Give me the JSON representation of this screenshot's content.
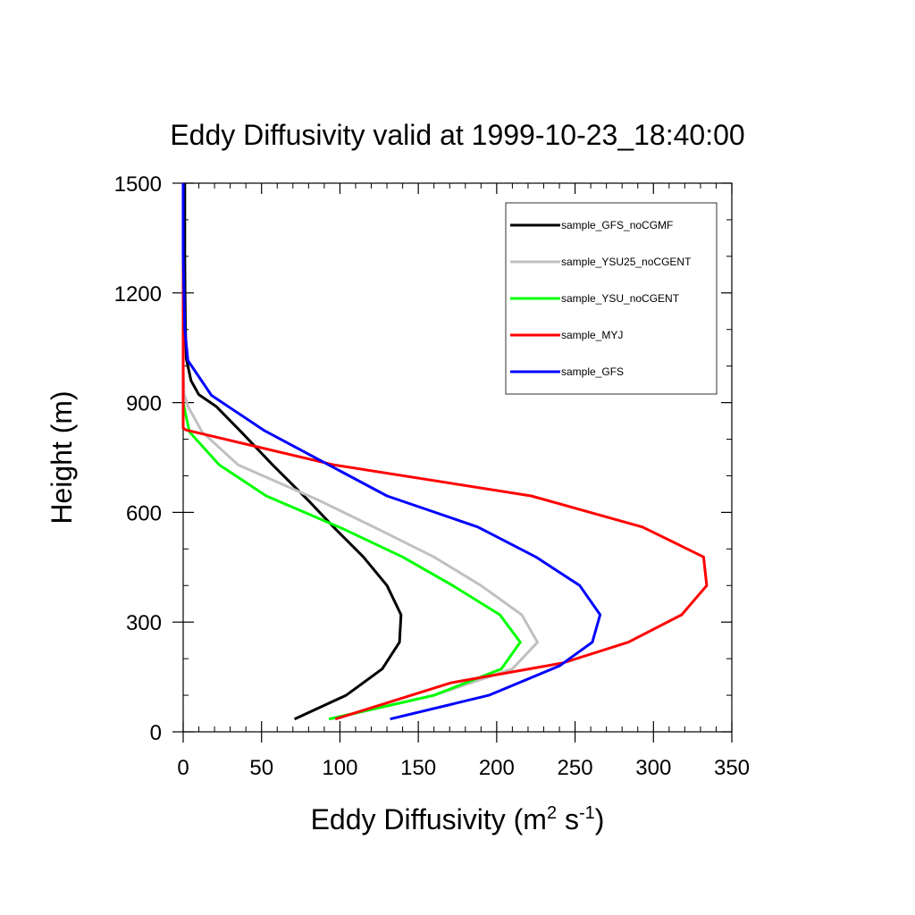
{
  "chart_data": {
    "type": "line",
    "title": "Eddy Diffusivity valid at 1999-10-23_18:40:00",
    "xlabel": "Eddy Diffusivity",
    "xlabel_unit_base": "m",
    "xlabel_unit_exp1": "2",
    "xlabel_unit_mid": "s",
    "xlabel_unit_exp2": "-1",
    "ylabel": "Height (m)",
    "xlim": [
      0,
      350
    ],
    "ylim": [
      0,
      1500
    ],
    "xticks": [
      0,
      50,
      100,
      150,
      200,
      250,
      300,
      350
    ],
    "yticks": [
      0,
      300,
      600,
      900,
      1200,
      1500
    ],
    "x_minor_step": 10,
    "y_minor_step": 100,
    "grid": false,
    "legend_position": "top-right",
    "series": [
      {
        "name": "sample_GFS_noCGMF",
        "color": "#000000",
        "points": [
          [
            71,
            35
          ],
          [
            104,
            100
          ],
          [
            127,
            172
          ],
          [
            138,
            245
          ],
          [
            139,
            320
          ],
          [
            130,
            400
          ],
          [
            115,
            478
          ],
          [
            97,
            555
          ],
          [
            80,
            632
          ],
          [
            57,
            730
          ],
          [
            37,
            820
          ],
          [
            21,
            890
          ],
          [
            10,
            922
          ],
          [
            5,
            960
          ],
          [
            2,
            1020
          ],
          [
            1.5,
            1100
          ],
          [
            1.2,
            1200
          ],
          [
            1,
            1300
          ],
          [
            1,
            1500
          ]
        ]
      },
      {
        "name": "sample_YSU25_noCGENT",
        "color": "#c0c0c0",
        "points": [
          [
            94,
            35
          ],
          [
            160,
            100
          ],
          [
            210,
            172
          ],
          [
            226,
            245
          ],
          [
            216,
            320
          ],
          [
            190,
            400
          ],
          [
            160,
            478
          ],
          [
            124,
            555
          ],
          [
            87,
            632
          ],
          [
            35,
            730
          ],
          [
            12,
            820
          ],
          [
            3,
            890
          ],
          [
            0.5,
            925
          ],
          [
            0,
            1000
          ],
          [
            0,
            1100
          ],
          [
            0,
            1500
          ]
        ]
      },
      {
        "name": "sample_YSU_noCGENT",
        "color": "#00ff00",
        "points": [
          [
            93,
            35
          ],
          [
            160,
            100
          ],
          [
            203,
            172
          ],
          [
            215,
            245
          ],
          [
            202,
            320
          ],
          [
            172,
            400
          ],
          [
            140,
            478
          ],
          [
            102,
            555
          ],
          [
            53,
            645
          ],
          [
            23,
            730
          ],
          [
            4,
            820
          ],
          [
            0,
            900
          ],
          [
            0,
            1000
          ],
          [
            0,
            1100
          ],
          [
            0,
            1500
          ]
        ]
      },
      {
        "name": "sample_MYJ",
        "color": "#ff0000",
        "points": [
          [
            97,
            35
          ],
          [
            171,
            134
          ],
          [
            242,
            188
          ],
          [
            284,
            245
          ],
          [
            318,
            320
          ],
          [
            334,
            400
          ],
          [
            332,
            478
          ],
          [
            293,
            560
          ],
          [
            222,
            645
          ],
          [
            96,
            730
          ],
          [
            2,
            825
          ],
          [
            0,
            830
          ],
          [
            0,
            900
          ],
          [
            0,
            1000
          ],
          [
            0,
            1100
          ],
          [
            0,
            1500
          ]
        ]
      },
      {
        "name": "sample_GFS",
        "color": "#0000ff",
        "points": [
          [
            132,
            35
          ],
          [
            195,
            100
          ],
          [
            240,
            180
          ],
          [
            261,
            245
          ],
          [
            266,
            320
          ],
          [
            253,
            400
          ],
          [
            225,
            478
          ],
          [
            188,
            560
          ],
          [
            130,
            645
          ],
          [
            52,
            823
          ],
          [
            18,
            920
          ],
          [
            3,
            1015
          ],
          [
            1,
            1100
          ],
          [
            0.5,
            1200
          ],
          [
            0,
            1300
          ],
          [
            0,
            1500
          ]
        ]
      }
    ]
  }
}
